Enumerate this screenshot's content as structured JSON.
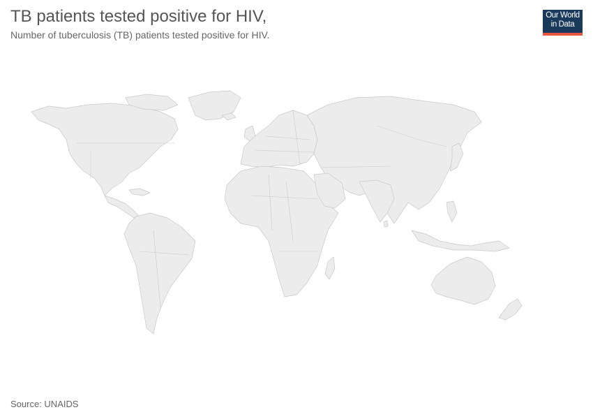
{
  "header": {
    "title": "TB patients tested positive for HIV,",
    "subtitle": "Number of tuberculosis (TB) patients tested positive for HIV."
  },
  "logo": {
    "line1": "Our World",
    "line2": "in Data",
    "background_color": "#1a3a5c",
    "accent_color": "#e8563f"
  },
  "map": {
    "type": "choropleth-world",
    "no_data_fill": "#ececec",
    "border_color": "#c8c8c8"
  },
  "footer": {
    "source": "Source: UNAIDS"
  }
}
